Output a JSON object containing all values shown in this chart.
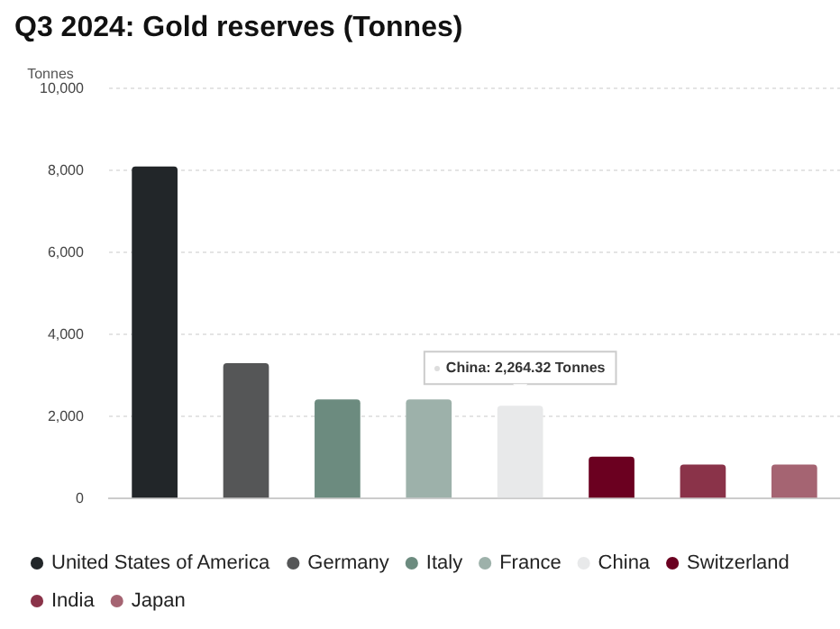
{
  "chart_data": {
    "type": "bar",
    "title": "Q3 2024: Gold reserves (Tonnes)",
    "ylabel": "Tonnes",
    "categories": [
      null,
      null,
      null,
      null,
      null,
      null,
      null,
      null
    ],
    "series": [
      {
        "name": "United States of America",
        "color": "#222629",
        "values": [
          8100,
          null,
          null,
          null,
          null,
          null,
          null,
          null
        ]
      },
      {
        "name": "Germany",
        "color": "#555657",
        "values": [
          null,
          3300,
          null,
          null,
          null,
          null,
          null,
          null
        ]
      },
      {
        "name": "Italy",
        "color": "#6c8b7f",
        "values": [
          null,
          null,
          2420,
          null,
          null,
          null,
          null,
          null
        ]
      },
      {
        "name": "France",
        "color": "#9db1aa",
        "values": [
          null,
          null,
          null,
          2420,
          null,
          null,
          null,
          null
        ]
      },
      {
        "name": "China",
        "color": "#e8e9ea",
        "values": [
          null,
          null,
          null,
          null,
          2264.32,
          null,
          null,
          null
        ]
      },
      {
        "name": "Switzerland",
        "color": "#6b0020",
        "values": [
          null,
          null,
          null,
          null,
          null,
          1020,
          null,
          null
        ]
      },
      {
        "name": "India",
        "color": "#8a3349",
        "values": [
          null,
          null,
          null,
          null,
          null,
          null,
          830,
          null
        ]
      },
      {
        "name": "Japan",
        "color": "#a56472",
        "values": [
          null,
          null,
          null,
          null,
          null,
          null,
          null,
          830
        ]
      }
    ],
    "ylim": [
      0,
      10000
    ],
    "yticks": [
      0,
      {
        "value": 2000,
        "label": "2,000"
      },
      {
        "value": 4000,
        "label": "4,000"
      },
      {
        "value": 6000,
        "label": "6,000"
      },
      {
        "value": 8000,
        "label": "8,000"
      },
      {
        "value": 10000,
        "label": "10,000"
      }
    ],
    "grid": "y",
    "legend": "bottom",
    "annotations": [
      {
        "text": "China: 2,264.32 Tonnes",
        "y": 2264.32
      }
    ]
  }
}
